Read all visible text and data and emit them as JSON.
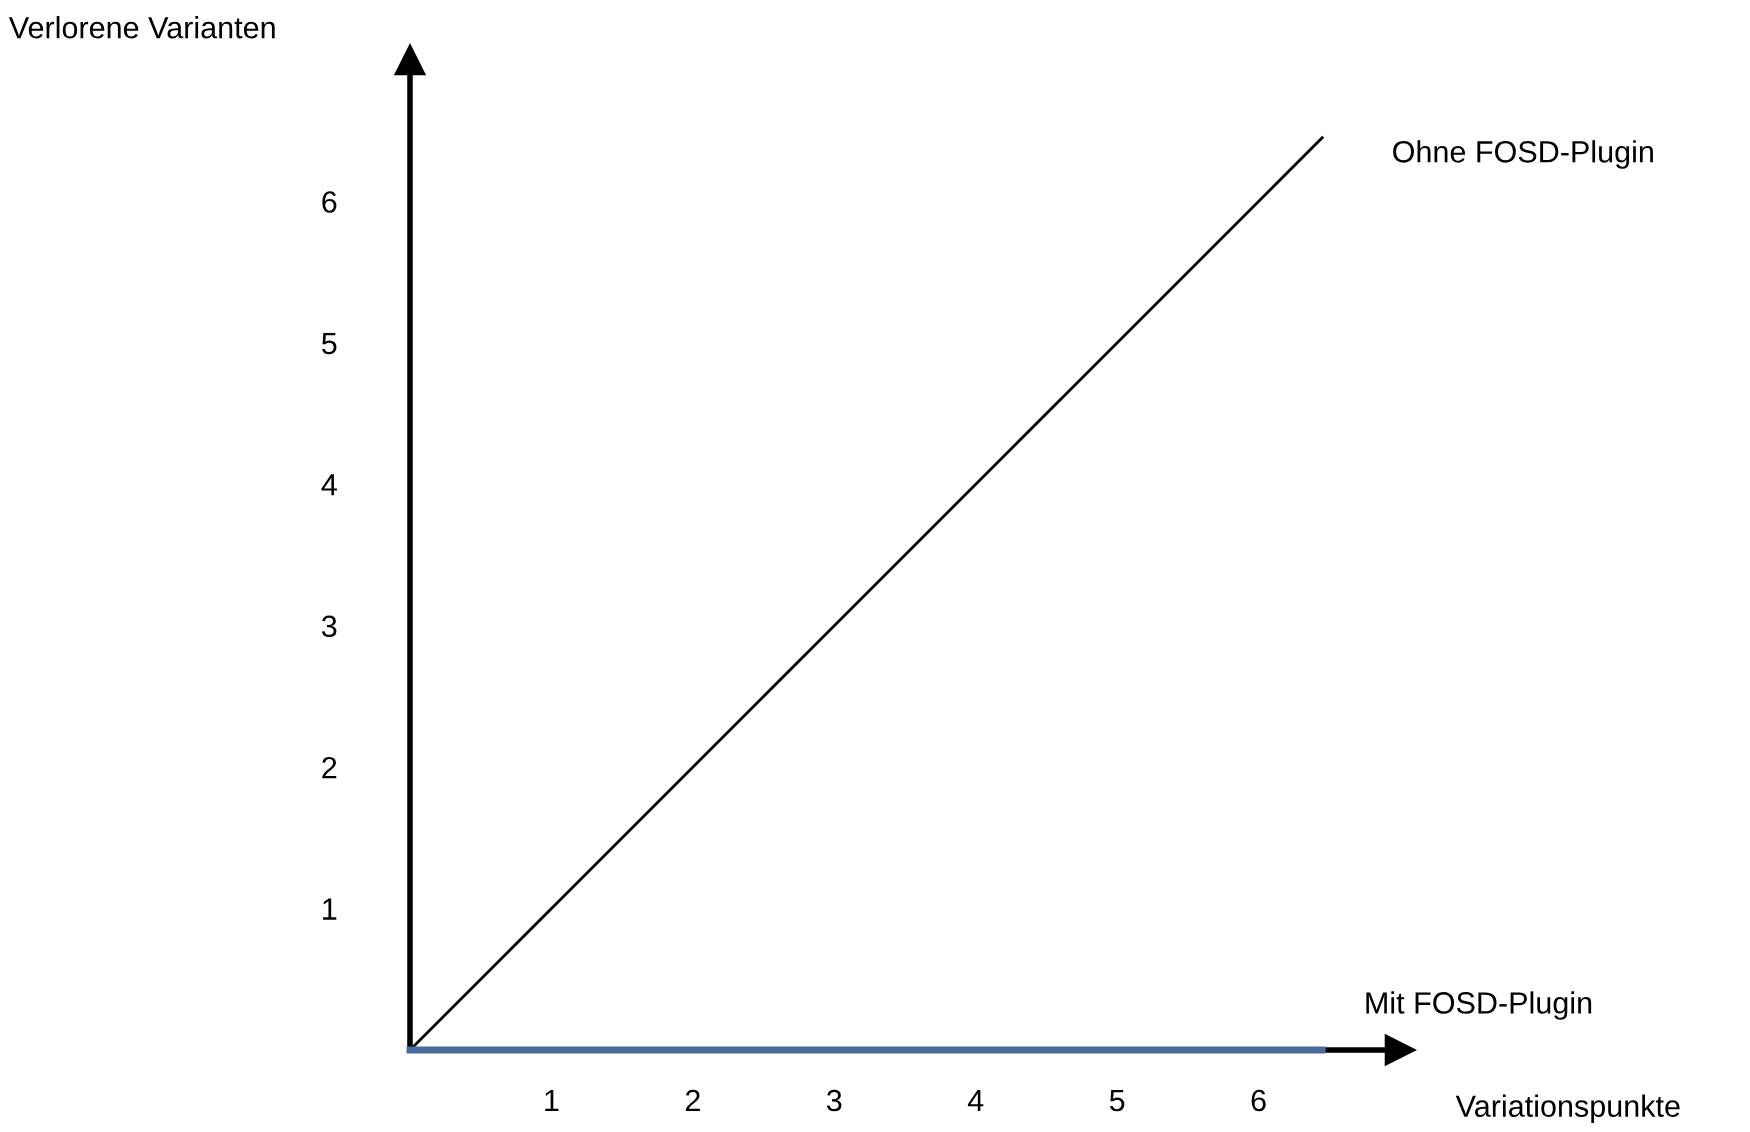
{
  "chart_data": {
    "type": "line",
    "xlabel": "Variationspunkte",
    "ylabel": "Verlorene Varianten",
    "xlim": [
      0,
      7
    ],
    "ylim": [
      0,
      7
    ],
    "xticks": [
      1,
      2,
      3,
      4,
      5,
      6
    ],
    "yticks": [
      1,
      2,
      3,
      4,
      5,
      6
    ],
    "grid": false,
    "legend": false,
    "marker": "none",
    "line_style": "solid",
    "x": [
      0,
      6.45
    ],
    "series": [
      {
        "name": "Ohne FOSD-Plugin",
        "color": "#000000",
        "values": [
          0,
          6.45
        ]
      },
      {
        "name": "Mit FOSD-Plugin",
        "color": "#4a6a9a",
        "values": [
          0,
          0
        ]
      }
    ]
  }
}
